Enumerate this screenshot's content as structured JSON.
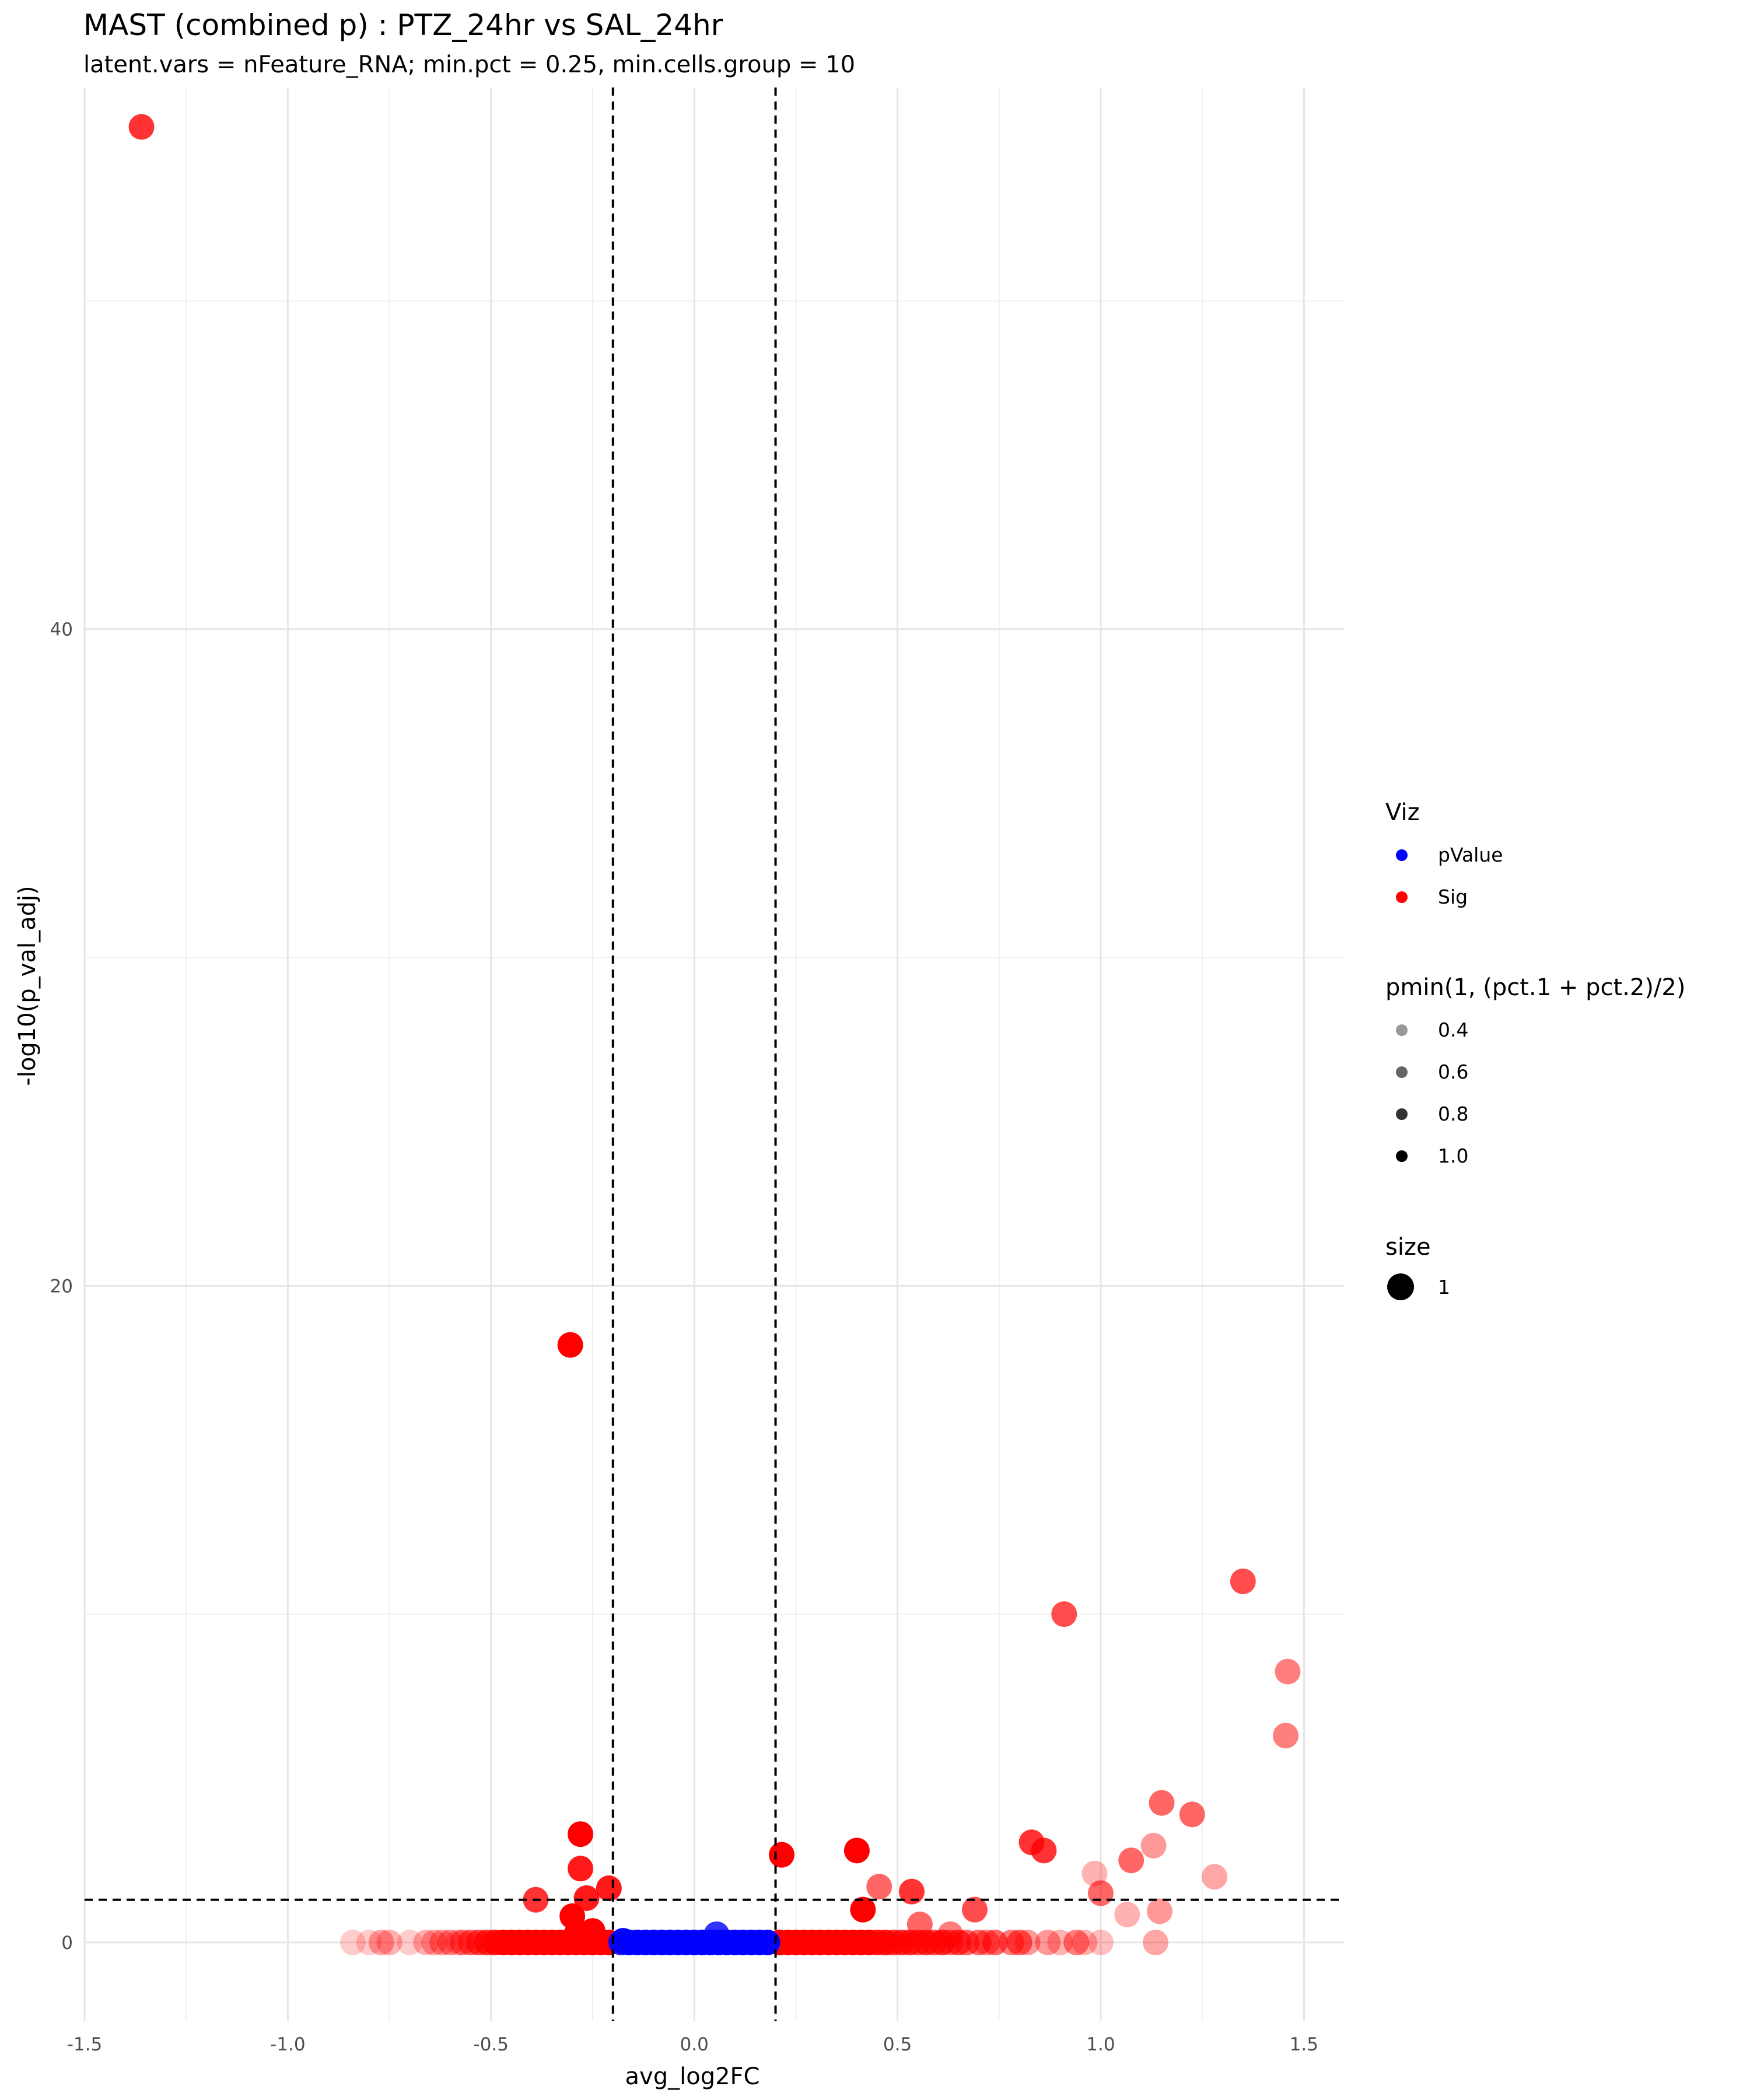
{
  "title": "MAST (combined p) : PTZ_24hr vs SAL_24hr",
  "subtitle": "latent.vars = nFeature_RNA; min.pct = 0.25, min.cells.group  = 10",
  "legend": {
    "viz": {
      "title": "Viz",
      "items": [
        {
          "label": "pValue",
          "color": "#0000ff"
        },
        {
          "label": "Sig",
          "color": "#ff0000"
        }
      ]
    },
    "alpha": {
      "title": "pmin(1, (pct.1 + pct.2)/2)",
      "items": [
        {
          "label": "0.4",
          "alpha": 0.4
        },
        {
          "label": "0.6",
          "alpha": 0.6
        },
        {
          "label": "0.8",
          "alpha": 0.8
        },
        {
          "label": "1.0",
          "alpha": 1.0
        }
      ]
    },
    "size": {
      "title": "size",
      "items": [
        {
          "label": "1"
        }
      ]
    }
  },
  "chart_data": {
    "type": "scatter",
    "title": "MAST (combined p) : PTZ_24hr vs SAL_24hr",
    "subtitle": "latent.vars = nFeature_RNA; min.pct = 0.25, min.cells.group  = 10",
    "xlabel": "avg_log2FC",
    "ylabel": "-log10(p_val_adj)",
    "xlim": [
      -1.5,
      1.6
    ],
    "ylim": [
      -2.4,
      56.5
    ],
    "x_ticks": [
      -1.5,
      -1.0,
      -0.5,
      0.0,
      0.5,
      1.0,
      1.5
    ],
    "x_tick_labels": [
      "-1.5",
      "-1.0",
      "-0.5",
      "0.0",
      "0.5",
      "1.0",
      "1.5"
    ],
    "y_ticks": [
      0,
      20,
      40
    ],
    "y_tick_labels": [
      "0",
      "20",
      "40"
    ],
    "grid": true,
    "legend_position": "right",
    "reference_lines": {
      "vertical": [
        -0.2,
        0.2
      ],
      "horizontal": [
        1.3
      ],
      "style": "dashed"
    },
    "series": [
      {
        "name": "Sig",
        "color": "#ff0000",
        "points": [
          {
            "x": -1.36,
            "y": 55.3,
            "alpha": 0.8
          },
          {
            "x": -0.305,
            "y": 18.2,
            "alpha": 1.0
          },
          {
            "x": -0.28,
            "y": 3.3,
            "alpha": 1.0
          },
          {
            "x": -0.28,
            "y": 2.25,
            "alpha": 0.9
          },
          {
            "x": -0.39,
            "y": 1.3,
            "alpha": 0.8
          },
          {
            "x": -0.3,
            "y": 0.8,
            "alpha": 1.0
          },
          {
            "x": -0.265,
            "y": 1.35,
            "alpha": 0.9
          },
          {
            "x": -0.21,
            "y": 1.65,
            "alpha": 0.9
          },
          {
            "x": -0.25,
            "y": 0.35,
            "alpha": 1.0
          },
          {
            "x": -0.29,
            "y": 0.25,
            "alpha": 1.0
          },
          {
            "x": 0.215,
            "y": 2.67,
            "alpha": 1.0
          },
          {
            "x": 0.4,
            "y": 2.8,
            "alpha": 1.0
          },
          {
            "x": 0.455,
            "y": 1.7,
            "alpha": 0.6
          },
          {
            "x": 0.415,
            "y": 1.0,
            "alpha": 1.0
          },
          {
            "x": 0.535,
            "y": 1.55,
            "alpha": 0.8
          },
          {
            "x": 0.555,
            "y": 0.55,
            "alpha": 0.6
          },
          {
            "x": 0.63,
            "y": 0.25,
            "alpha": 0.5
          },
          {
            "x": 0.69,
            "y": 1.0,
            "alpha": 0.7
          },
          {
            "x": 0.83,
            "y": 3.05,
            "alpha": 0.8
          },
          {
            "x": 0.86,
            "y": 2.8,
            "alpha": 0.8
          },
          {
            "x": 0.91,
            "y": 10.0,
            "alpha": 0.7
          },
          {
            "x": 0.985,
            "y": 2.1,
            "alpha": 0.3
          },
          {
            "x": 1.0,
            "y": 1.5,
            "alpha": 0.6
          },
          {
            "x": 1.065,
            "y": 0.85,
            "alpha": 0.3
          },
          {
            "x": 1.075,
            "y": 2.5,
            "alpha": 0.6
          },
          {
            "x": 1.13,
            "y": 2.95,
            "alpha": 0.4
          },
          {
            "x": 1.145,
            "y": 0.95,
            "alpha": 0.4
          },
          {
            "x": 1.15,
            "y": 4.25,
            "alpha": 0.6
          },
          {
            "x": 1.225,
            "y": 3.9,
            "alpha": 0.6
          },
          {
            "x": 1.28,
            "y": 2.0,
            "alpha": 0.35
          },
          {
            "x": 1.35,
            "y": 11.0,
            "alpha": 0.7
          },
          {
            "x": 1.455,
            "y": 6.3,
            "alpha": 0.5
          },
          {
            "x": 1.46,
            "y": 8.25,
            "alpha": 0.5
          },
          {
            "x": -0.84,
            "y": 0,
            "alpha": 0.2
          },
          {
            "x": -0.8,
            "y": 0,
            "alpha": 0.2
          },
          {
            "x": -0.77,
            "y": 0,
            "alpha": 0.35
          },
          {
            "x": -0.75,
            "y": 0,
            "alpha": 0.3
          },
          {
            "x": -0.7,
            "y": 0,
            "alpha": 0.2
          },
          {
            "x": -0.66,
            "y": 0,
            "alpha": 0.3
          },
          {
            "x": -0.64,
            "y": 0,
            "alpha": 0.35
          },
          {
            "x": -0.62,
            "y": 0,
            "alpha": 0.4
          },
          {
            "x": -0.6,
            "y": 0,
            "alpha": 0.45
          },
          {
            "x": -0.58,
            "y": 0,
            "alpha": 0.3
          },
          {
            "x": -0.57,
            "y": 0,
            "alpha": 0.5
          },
          {
            "x": -0.55,
            "y": 0,
            "alpha": 0.6
          },
          {
            "x": -0.53,
            "y": 0,
            "alpha": 0.7
          },
          {
            "x": -0.51,
            "y": 0,
            "alpha": 0.8
          },
          {
            "x": -0.49,
            "y": 0,
            "alpha": 0.9
          },
          {
            "x": -0.47,
            "y": 0,
            "alpha": 1.0
          },
          {
            "x": -0.45,
            "y": 0,
            "alpha": 1.0
          },
          {
            "x": -0.43,
            "y": 0,
            "alpha": 1.0
          },
          {
            "x": -0.41,
            "y": 0,
            "alpha": 1.0
          },
          {
            "x": -0.39,
            "y": 0,
            "alpha": 1.0
          },
          {
            "x": -0.37,
            "y": 0,
            "alpha": 1.0
          },
          {
            "x": -0.35,
            "y": 0,
            "alpha": 1.0
          },
          {
            "x": -0.33,
            "y": 0,
            "alpha": 1.0
          },
          {
            "x": -0.31,
            "y": 0,
            "alpha": 1.0
          },
          {
            "x": -0.29,
            "y": 0,
            "alpha": 1.0
          },
          {
            "x": -0.27,
            "y": 0,
            "alpha": 1.0
          },
          {
            "x": -0.25,
            "y": 0,
            "alpha": 1.0
          },
          {
            "x": -0.23,
            "y": 0,
            "alpha": 1.0
          },
          {
            "x": -0.21,
            "y": 0,
            "alpha": 1.0
          },
          {
            "x": 0.21,
            "y": 0,
            "alpha": 1.0
          },
          {
            "x": 0.23,
            "y": 0,
            "alpha": 1.0
          },
          {
            "x": 0.25,
            "y": 0,
            "alpha": 1.0
          },
          {
            "x": 0.27,
            "y": 0,
            "alpha": 1.0
          },
          {
            "x": 0.29,
            "y": 0,
            "alpha": 1.0
          },
          {
            "x": 0.31,
            "y": 0,
            "alpha": 1.0
          },
          {
            "x": 0.33,
            "y": 0,
            "alpha": 1.0
          },
          {
            "x": 0.35,
            "y": 0,
            "alpha": 1.0
          },
          {
            "x": 0.37,
            "y": 0,
            "alpha": 1.0
          },
          {
            "x": 0.39,
            "y": 0,
            "alpha": 1.0
          },
          {
            "x": 0.41,
            "y": 0,
            "alpha": 1.0
          },
          {
            "x": 0.43,
            "y": 0,
            "alpha": 1.0
          },
          {
            "x": 0.45,
            "y": 0,
            "alpha": 0.9
          },
          {
            "x": 0.47,
            "y": 0,
            "alpha": 0.9
          },
          {
            "x": 0.49,
            "y": 0,
            "alpha": 0.8
          },
          {
            "x": 0.51,
            "y": 0,
            "alpha": 0.8
          },
          {
            "x": 0.53,
            "y": 0,
            "alpha": 0.8
          },
          {
            "x": 0.55,
            "y": 0,
            "alpha": 0.7
          },
          {
            "x": 0.57,
            "y": 0,
            "alpha": 0.8
          },
          {
            "x": 0.59,
            "y": 0,
            "alpha": 0.7
          },
          {
            "x": 0.61,
            "y": 0,
            "alpha": 0.8
          },
          {
            "x": 0.63,
            "y": 0,
            "alpha": 0.6
          },
          {
            "x": 0.65,
            "y": 0,
            "alpha": 0.7
          },
          {
            "x": 0.67,
            "y": 0,
            "alpha": 0.6
          },
          {
            "x": 0.7,
            "y": 0,
            "alpha": 0.6
          },
          {
            "x": 0.72,
            "y": 0,
            "alpha": 0.5
          },
          {
            "x": 0.74,
            "y": 0,
            "alpha": 0.6
          },
          {
            "x": 0.78,
            "y": 0,
            "alpha": 0.5
          },
          {
            "x": 0.8,
            "y": 0,
            "alpha": 0.6
          },
          {
            "x": 0.82,
            "y": 0,
            "alpha": 0.4
          },
          {
            "x": 0.87,
            "y": 0,
            "alpha": 0.4
          },
          {
            "x": 0.9,
            "y": 0,
            "alpha": 0.3
          },
          {
            "x": 0.94,
            "y": 0,
            "alpha": 0.5
          },
          {
            "x": 0.96,
            "y": 0,
            "alpha": 0.3
          },
          {
            "x": 1.0,
            "y": 0,
            "alpha": 0.25
          },
          {
            "x": 1.135,
            "y": 0,
            "alpha": 0.35
          }
        ]
      },
      {
        "name": "pValue",
        "color": "#0000ff",
        "points": [
          {
            "x": -0.18,
            "y": 0,
            "alpha": 0.9
          },
          {
            "x": -0.16,
            "y": 0,
            "alpha": 1.0
          },
          {
            "x": -0.14,
            "y": 0,
            "alpha": 1.0
          },
          {
            "x": -0.12,
            "y": 0,
            "alpha": 1.0
          },
          {
            "x": -0.1,
            "y": 0,
            "alpha": 1.0
          },
          {
            "x": -0.08,
            "y": 0,
            "alpha": 1.0
          },
          {
            "x": -0.06,
            "y": 0,
            "alpha": 1.0
          },
          {
            "x": -0.04,
            "y": 0,
            "alpha": 1.0
          },
          {
            "x": -0.02,
            "y": 0,
            "alpha": 1.0
          },
          {
            "x": 0.0,
            "y": 0,
            "alpha": 1.0
          },
          {
            "x": 0.02,
            "y": 0,
            "alpha": 1.0
          },
          {
            "x": 0.04,
            "y": 0,
            "alpha": 1.0
          },
          {
            "x": 0.055,
            "y": 0.25,
            "alpha": 0.8
          },
          {
            "x": 0.06,
            "y": 0,
            "alpha": 1.0
          },
          {
            "x": 0.08,
            "y": 0,
            "alpha": 1.0
          },
          {
            "x": 0.1,
            "y": 0,
            "alpha": 1.0
          },
          {
            "x": 0.12,
            "y": 0,
            "alpha": 1.0
          },
          {
            "x": 0.14,
            "y": 0,
            "alpha": 1.0
          },
          {
            "x": 0.16,
            "y": 0,
            "alpha": 1.0
          },
          {
            "x": 0.18,
            "y": 0,
            "alpha": 1.0
          },
          {
            "x": -0.175,
            "y": 0.05,
            "alpha": 1.0
          }
        ]
      }
    ]
  }
}
